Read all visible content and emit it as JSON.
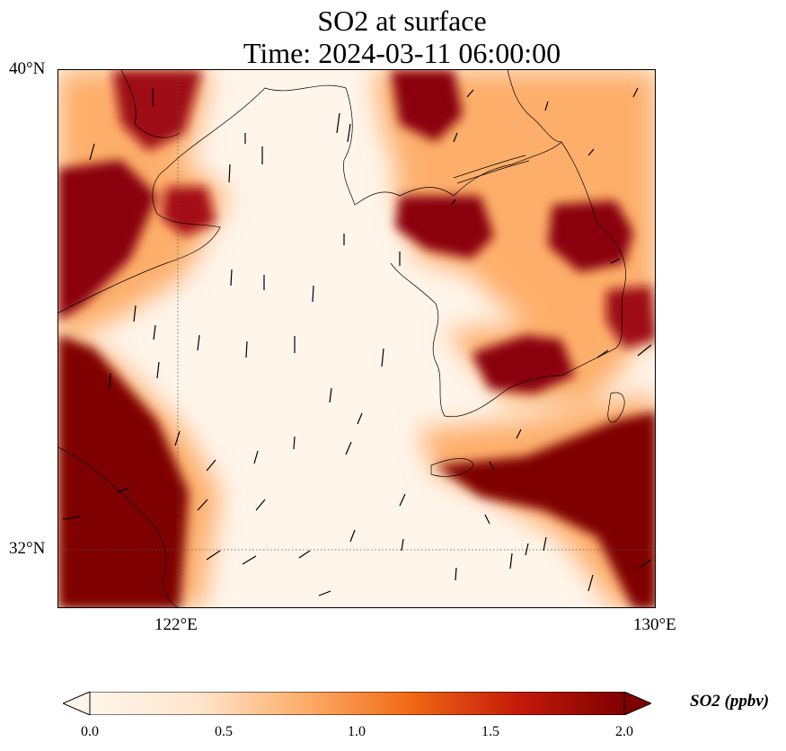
{
  "title": {
    "line1": "SO2 at surface",
    "line2": "Time: 2024-03-11 06:00:00"
  },
  "map": {
    "lat_range": [
      31.2,
      40.0
    ],
    "lon_range": [
      120.0,
      130.0
    ],
    "lat_labels": [
      "40°N",
      "32°N"
    ],
    "lon_labels": [
      "122°E",
      "130°E"
    ],
    "gridlines": "dotted at 32°N and 122°E",
    "variable": "SO2",
    "colormap": [
      "#fff5eb",
      "#fdd5a8",
      "#fd8d3c",
      "#d94801",
      "#a50f15",
      "#7f0000"
    ]
  },
  "colorbar": {
    "label": "SO2 (ppbv)",
    "ticks": [
      "0.0",
      "0.5",
      "1.0",
      "1.5",
      "2.0"
    ],
    "range": [
      0.0,
      2.0
    ],
    "extend": "both"
  }
}
